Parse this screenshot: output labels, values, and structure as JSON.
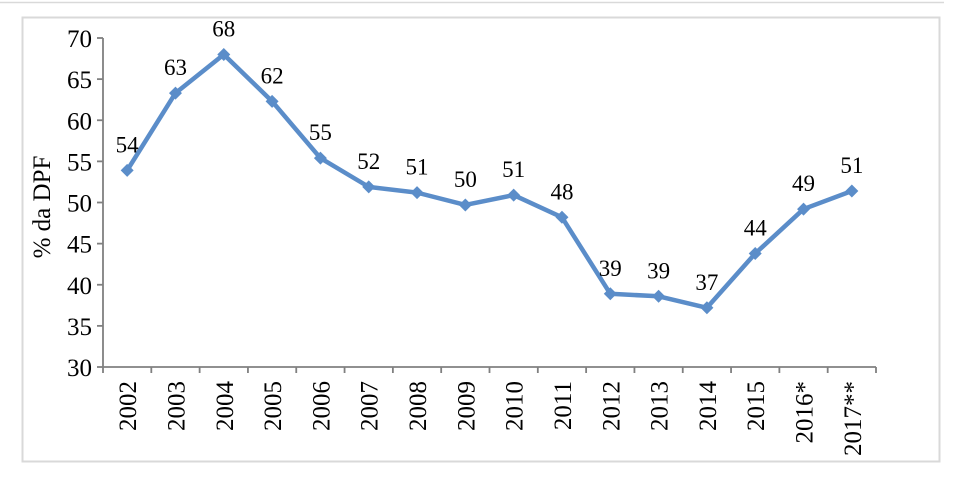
{
  "figure": {
    "background_color": "#ffffff",
    "frame_border_color": "#d9d9d9"
  },
  "chart_data": {
    "type": "line",
    "categories": [
      "2002",
      "2003",
      "2004",
      "2005",
      "2006",
      "2007",
      "2008",
      "2009",
      "2010",
      "2011",
      "2012",
      "2013",
      "2014",
      "2015",
      "2016*",
      "2017**"
    ],
    "values": [
      53.9,
      63.3,
      68.0,
      62.3,
      55.4,
      51.9,
      51.2,
      49.7,
      50.9,
      48.2,
      38.9,
      38.6,
      37.2,
      43.8,
      49.2,
      51.4
    ],
    "data_labels": [
      "54",
      "63",
      "68",
      "62",
      "55",
      "52",
      "51",
      "50",
      "51",
      "48",
      "39",
      "39",
      "37",
      "44",
      "49",
      "51"
    ],
    "title": "",
    "xlabel": "",
    "ylabel": "% da DPF",
    "ylim": [
      30,
      70
    ],
    "ytick_step": 5,
    "yticks": [
      "70",
      "65",
      "60",
      "55",
      "50",
      "45",
      "40",
      "35",
      "30"
    ],
    "xtick_rotation_deg": -90,
    "grid": false,
    "legend": "none",
    "data_label_position": "above",
    "marker_shape": "diamond",
    "line_color": "#5b8dc9",
    "axis_color": "#808080",
    "text_color": "#000000"
  }
}
